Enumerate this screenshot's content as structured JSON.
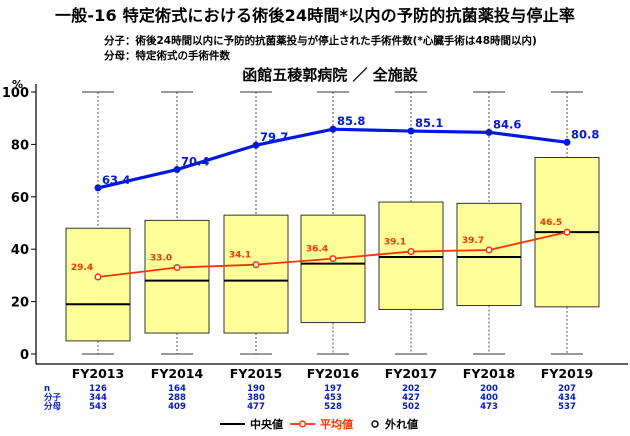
{
  "title": "一般-16 特定術式における術後24時間*以内の予防的抗菌薬投与停止率",
  "notes": {
    "numerator": "分子：術後24時間以内に予防的抗菌薬投与が停止された手術件数(*心臓手術は48時間以内)",
    "denominator": "分母：特定術式の手術件数"
  },
  "chart_data": {
    "type": "box-line",
    "title": "函館五稜郭病院 ／ 全施設",
    "ylabel": "%",
    "ylim": [
      0,
      100
    ],
    "yticks": [
      0,
      20,
      40,
      60,
      80,
      100
    ],
    "categories": [
      "FY2013",
      "FY2014",
      "FY2015",
      "FY2016",
      "FY2017",
      "FY2018",
      "FY2019"
    ],
    "hospital_series": {
      "values": [
        63.4,
        70.4,
        79.7,
        85.8,
        85.1,
        84.6,
        80.8
      ],
      "labels": [
        "63.4",
        "70.4",
        "79.7",
        "85.8",
        "85.1",
        "84.6",
        "80.8"
      ],
      "color": "#0018e0"
    },
    "mean_series": {
      "name": "平均値",
      "values": [
        29.4,
        33.0,
        34.1,
        36.4,
        39.1,
        39.7,
        46.5
      ],
      "labels": [
        "29.4",
        "33.0",
        "34.1",
        "36.4",
        "39.1",
        "39.7",
        "46.5"
      ],
      "color": "#ff3300"
    },
    "boxes": [
      {
        "whisker_low": 0,
        "q1": 5,
        "median": 19,
        "q3": 48,
        "whisker_high": 100
      },
      {
        "whisker_low": 0,
        "q1": 8,
        "median": 28,
        "q3": 51,
        "whisker_high": 100
      },
      {
        "whisker_low": 0,
        "q1": 8,
        "median": 28,
        "q3": 53,
        "whisker_high": 100
      },
      {
        "whisker_low": 0,
        "q1": 12,
        "median": 34.5,
        "q3": 53,
        "whisker_high": 100
      },
      {
        "whisker_low": 0,
        "q1": 17,
        "median": 37,
        "q3": 58,
        "whisker_high": 100
      },
      {
        "whisker_low": 0,
        "q1": 18.5,
        "median": 37,
        "q3": 57.5,
        "whisker_high": 100
      },
      {
        "whisker_low": 0,
        "q1": 18,
        "median": 46.5,
        "q3": 75,
        "whisker_high": 100
      }
    ],
    "box_fill": "#ffff99",
    "table": {
      "row_labels": [
        "n",
        "分子",
        "分母"
      ],
      "rows": [
        [
          "126",
          "164",
          "190",
          "197",
          "202",
          "200",
          "207"
        ],
        [
          "344",
          "288",
          "380",
          "453",
          "427",
          "400",
          "434"
        ],
        [
          "543",
          "409",
          "477",
          "528",
          "502",
          "473",
          "537"
        ]
      ],
      "color": "#0018e0"
    },
    "legend": {
      "position": "bottom",
      "items": [
        "中央値",
        "平均値",
        "外れ値"
      ]
    }
  }
}
